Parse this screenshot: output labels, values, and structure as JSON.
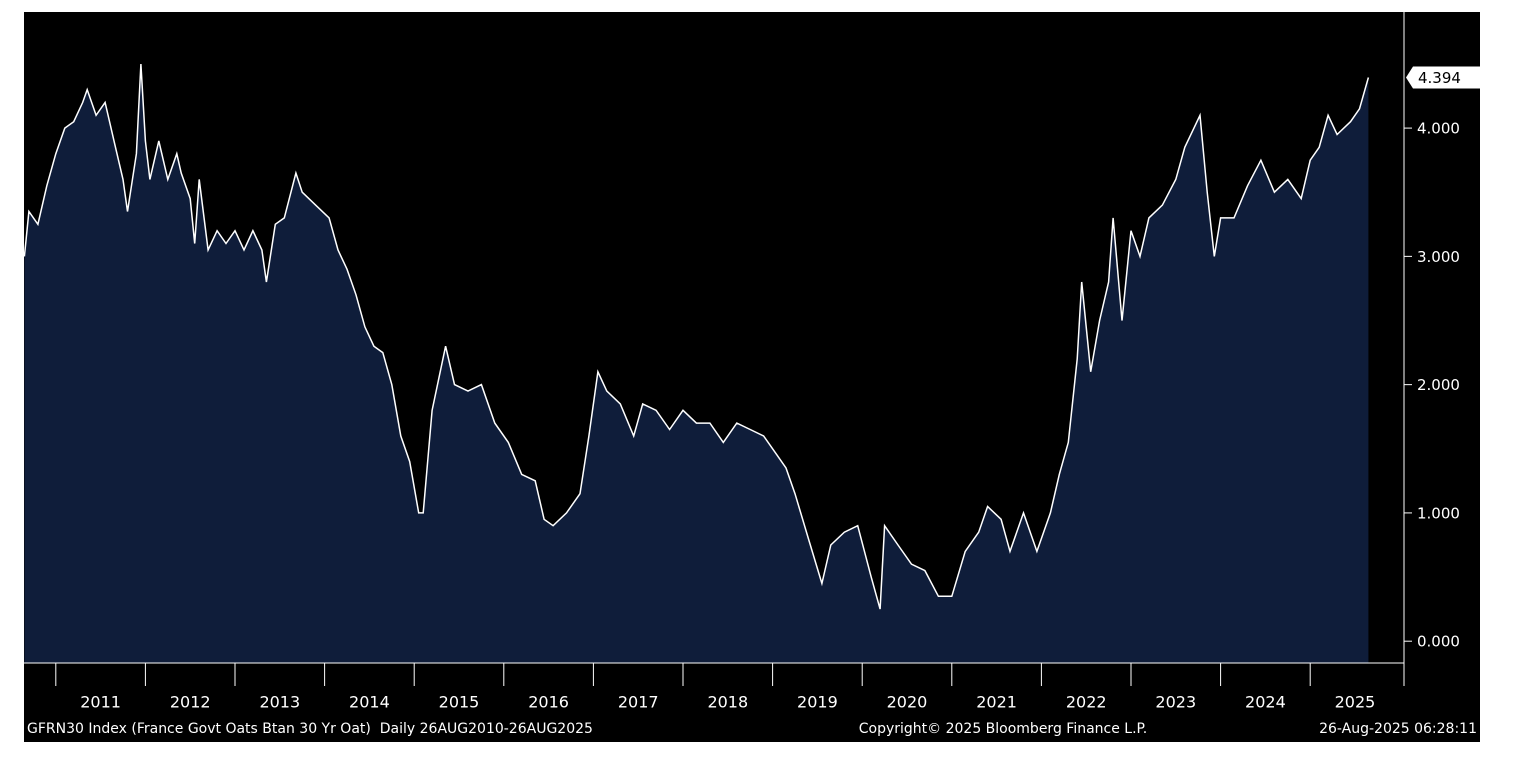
{
  "chart_data": {
    "type": "area",
    "series": [
      {
        "name": "GFRN30 Index",
        "color": "#ffffff",
        "fill": "#0f1d3a",
        "x": [
          2010.65,
          2010.7,
          2010.8,
          2010.9,
          2011.0,
          2011.1,
          2011.2,
          2011.3,
          2011.35,
          2011.45,
          2011.55,
          2011.65,
          2011.75,
          2011.8,
          2011.9,
          2011.95,
          2012.0,
          2012.05,
          2012.15,
          2012.25,
          2012.35,
          2012.4,
          2012.5,
          2012.55,
          2012.6,
          2012.7,
          2012.8,
          2012.9,
          2013.0,
          2013.1,
          2013.2,
          2013.3,
          2013.35,
          2013.45,
          2013.55,
          2013.68,
          2013.75,
          2013.9,
          2014.05,
          2014.15,
          2014.25,
          2014.35,
          2014.45,
          2014.55,
          2014.65,
          2014.75,
          2014.85,
          2014.95,
          2015.05,
          2015.1,
          2015.2,
          2015.35,
          2015.45,
          2015.6,
          2015.75,
          2015.9,
          2016.05,
          2016.2,
          2016.35,
          2016.45,
          2016.55,
          2016.7,
          2016.85,
          2016.95,
          2017.05,
          2017.15,
          2017.3,
          2017.45,
          2017.55,
          2017.7,
          2017.85,
          2018.0,
          2018.15,
          2018.3,
          2018.45,
          2018.6,
          2018.75,
          2018.9,
          2019.05,
          2019.15,
          2019.25,
          2019.4,
          2019.55,
          2019.65,
          2019.8,
          2019.95,
          2020.1,
          2020.2,
          2020.25,
          2020.4,
          2020.55,
          2020.7,
          2020.85,
          2021.0,
          2021.15,
          2021.3,
          2021.4,
          2021.55,
          2021.65,
          2021.8,
          2021.95,
          2022.1,
          2022.2,
          2022.3,
          2022.4,
          2022.45,
          2022.55,
          2022.65,
          2022.75,
          2022.8,
          2022.9,
          2023.0,
          2023.1,
          2023.2,
          2023.35,
          2023.5,
          2023.6,
          2023.77,
          2023.85,
          2023.93,
          2024.0,
          2024.15,
          2024.3,
          2024.45,
          2024.6,
          2024.75,
          2024.9,
          2025.0,
          2025.1,
          2025.2,
          2025.3,
          2025.45,
          2025.55,
          2025.65
        ],
        "values": [
          3.0,
          3.35,
          3.25,
          3.55,
          3.8,
          4.0,
          4.05,
          4.2,
          4.3,
          4.1,
          4.2,
          3.9,
          3.6,
          3.35,
          3.8,
          4.5,
          3.9,
          3.6,
          3.9,
          3.6,
          3.8,
          3.65,
          3.45,
          3.1,
          3.6,
          3.05,
          3.2,
          3.1,
          3.2,
          3.05,
          3.2,
          3.05,
          2.8,
          3.25,
          3.3,
          3.65,
          3.5,
          3.4,
          3.3,
          3.05,
          2.9,
          2.7,
          2.45,
          2.3,
          2.25,
          2.0,
          1.6,
          1.4,
          1.0,
          1.0,
          1.8,
          2.3,
          2.0,
          1.95,
          2.0,
          1.7,
          1.55,
          1.3,
          1.25,
          0.95,
          0.9,
          1.0,
          1.15,
          1.6,
          2.1,
          1.95,
          1.85,
          1.6,
          1.85,
          1.8,
          1.65,
          1.8,
          1.7,
          1.7,
          1.55,
          1.7,
          1.65,
          1.6,
          1.45,
          1.35,
          1.15,
          0.8,
          0.45,
          0.75,
          0.85,
          0.9,
          0.5,
          0.25,
          0.9,
          0.75,
          0.6,
          0.55,
          0.35,
          0.35,
          0.7,
          0.85,
          1.05,
          0.95,
          0.7,
          1.0,
          0.7,
          1.0,
          1.3,
          1.55,
          2.2,
          2.8,
          2.1,
          2.5,
          2.8,
          3.3,
          2.5,
          3.2,
          3.0,
          3.3,
          3.4,
          3.6,
          3.85,
          4.1,
          3.5,
          3.0,
          3.3,
          3.3,
          3.55,
          3.75,
          3.5,
          3.6,
          3.45,
          3.75,
          3.85,
          4.1,
          3.95,
          4.05,
          4.15,
          4.394
        ]
      }
    ],
    "xlim": [
      2010.645,
      2025.98
    ],
    "xticks": [
      2011,
      2012,
      2013,
      2014,
      2015,
      2016,
      2017,
      2018,
      2019,
      2020,
      2021,
      2022,
      2023,
      2024,
      2025
    ],
    "ylim": [
      -0.17,
      4.905
    ],
    "yticks": [
      {
        "value": 0,
        "label": "0.000"
      },
      {
        "value": 1,
        "label": "1.000"
      },
      {
        "value": 2,
        "label": "2.000"
      },
      {
        "value": 3,
        "label": "3.000"
      },
      {
        "value": 4,
        "label": "4.000"
      }
    ],
    "footer_left": "GFRN30 Index (France Govt Oats Btan 30 Yr Oat)  Daily 26AUG2010-26AUG2025",
    "footer_center": "Copyright© 2025 Bloomberg Finance L.P.",
    "footer_right": "26-Aug-2025 06:28:11"
  }
}
